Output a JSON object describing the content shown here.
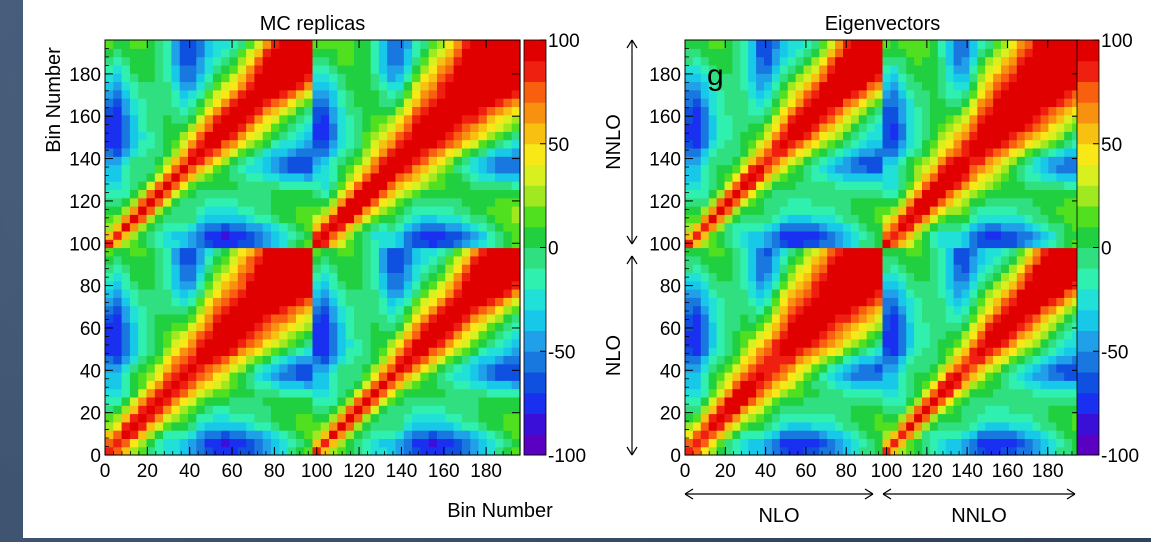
{
  "colors": {
    "scale": [
      "#5a00c0",
      "#3a10d8",
      "#1a30f0",
      "#1050e0",
      "#1878e0",
      "#20a0e8",
      "#18c8e8",
      "#20e0d8",
      "#30f0b0",
      "#30e080",
      "#20d040",
      "#50e020",
      "#a0e820",
      "#d8f020",
      "#f8e818",
      "#f8c010",
      "#f89010",
      "#f86010",
      "#f02010",
      "#e00000"
    ]
  },
  "chart_data": [
    {
      "type": "heatmap",
      "title": "MC replicas",
      "xlabel": "Bin Number",
      "ylabel": "Bin Number",
      "xlim": [
        0,
        196
      ],
      "ylim": [
        0,
        196
      ],
      "x_ticks": [
        "0",
        "20",
        "40",
        "60",
        "80",
        "100",
        "120",
        "140",
        "160",
        "180"
      ],
      "y_ticks": [
        "0",
        "20",
        "40",
        "60",
        "80",
        "100",
        "120",
        "140",
        "160",
        "180"
      ],
      "colorbar": {
        "range": [
          -100,
          100
        ],
        "tick_labels": [
          "100",
          "50",
          "0",
          "-50",
          "-100"
        ]
      },
      "blocks": [
        "NLO-NLO",
        "NLO-NNLO",
        "NNLO-NLO",
        "NNLO-NNLO"
      ],
      "annotation": ""
    },
    {
      "type": "heatmap",
      "title": "Eigenvectors",
      "xlabel": "",
      "ylabel": "",
      "xlim": [
        0,
        196
      ],
      "ylim": [
        0,
        196
      ],
      "x_ticks": [
        "0",
        "20",
        "40",
        "60",
        "80",
        "100",
        "120",
        "140",
        "160",
        "180"
      ],
      "y_ticks": [
        "0",
        "20",
        "40",
        "60",
        "80",
        "100",
        "120",
        "140",
        "160",
        "180"
      ],
      "colorbar": {
        "range": [
          -100,
          100
        ],
        "tick_labels": [
          "100",
          "50",
          "0",
          "-50",
          "-100"
        ]
      },
      "annotation": "g",
      "axis_groups": {
        "x": [
          "NLO",
          "NNLO"
        ],
        "y": [
          "NLO",
          "NNLO"
        ]
      }
    }
  ]
}
